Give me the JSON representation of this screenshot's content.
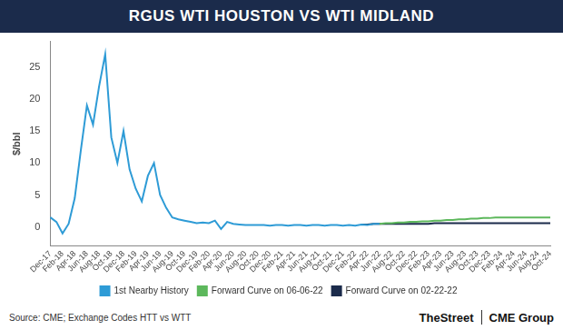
{
  "chart_data": {
    "type": "line",
    "title": "RGUS WTI HOUSTON VS WTI MIDLAND",
    "y_label": "$/bbl",
    "source": "Source: CME; Exchange Codes HTT vs WTT",
    "logos": [
      "TheStreet",
      "CME Group"
    ],
    "categories": [
      "Dec-17",
      null,
      "Feb-18",
      null,
      "Apr-18",
      null,
      "Jun-18",
      null,
      "Aug-18",
      null,
      "Oct-18",
      null,
      "Dec-18",
      null,
      "Feb-19",
      null,
      "Apr-19",
      null,
      "Jun-19",
      null,
      "Aug-19",
      null,
      "Oct-19",
      null,
      "Dec-19",
      null,
      "Feb-20",
      null,
      "Apr-20",
      null,
      "Jun-20",
      null,
      "Aug-20",
      null,
      "Oct-20",
      null,
      "Dec-20",
      null,
      "Feb-21",
      null,
      "Apr-21",
      null,
      "Jun-21",
      null,
      "Aug-21",
      null,
      "Oct-21",
      null,
      "Dec-21",
      null,
      "Feb-22",
      null,
      "Apr-22",
      null,
      "Jun-22",
      null,
      "Aug-22",
      null,
      "Oct-22",
      null,
      "Dec-22",
      null,
      "Feb-23",
      null,
      "Apr-23",
      null,
      "Jun-23",
      null,
      "Aug-23",
      null,
      "Oct-23",
      null,
      "Dec-23",
      null,
      "Feb-24",
      null,
      "Apr-24",
      null,
      "Jun-24",
      null,
      "Aug-24",
      null,
      "Oct-24"
    ],
    "series": [
      {
        "name": "1st Nearby History",
        "color": "#2e9bd6",
        "values": [
          1.5,
          0.8,
          -1.0,
          0.5,
          4.5,
          12,
          19,
          16,
          22,
          27,
          14,
          10,
          15,
          9,
          6,
          4,
          8,
          10,
          5,
          3,
          1.5,
          1.2,
          1.0,
          0.8,
          0.6,
          0.7,
          0.6,
          1.0,
          -0.3,
          0.8,
          0.5,
          0.4,
          0.3,
          0.3,
          0.3,
          0.3,
          0.2,
          0.3,
          0.3,
          0.2,
          0.3,
          0.3,
          0.2,
          0.3,
          0.3,
          0.2,
          0.3,
          0.3,
          0.2,
          0.3,
          0.2,
          0.4,
          0.3,
          0.5,
          0.5,
          null,
          null,
          null,
          null,
          null,
          null,
          null,
          null,
          null,
          null,
          null,
          null,
          null,
          null,
          null,
          null,
          null,
          null,
          null,
          null,
          null,
          null,
          null,
          null,
          null,
          null,
          null,
          null
        ]
      },
      {
        "name": "Forward Curve on 06-06-22",
        "color": "#5db85c",
        "values": [
          null,
          null,
          null,
          null,
          null,
          null,
          null,
          null,
          null,
          null,
          null,
          null,
          null,
          null,
          null,
          null,
          null,
          null,
          null,
          null,
          null,
          null,
          null,
          null,
          null,
          null,
          null,
          null,
          null,
          null,
          null,
          null,
          null,
          null,
          null,
          null,
          null,
          null,
          null,
          null,
          null,
          null,
          null,
          null,
          null,
          null,
          null,
          null,
          null,
          null,
          null,
          null,
          null,
          null,
          0.5,
          0.6,
          0.6,
          0.7,
          0.7,
          0.8,
          0.8,
          0.9,
          0.9,
          1.0,
          1.0,
          1.1,
          1.1,
          1.2,
          1.2,
          1.3,
          1.3,
          1.4,
          1.4,
          1.5,
          1.5,
          1.5,
          1.5,
          1.5,
          1.5,
          1.5,
          1.5,
          1.5,
          1.5
        ]
      },
      {
        "name": "Forward Curve on 02-22-22",
        "color": "#1b2b4b",
        "values": [
          null,
          null,
          null,
          null,
          null,
          null,
          null,
          null,
          null,
          null,
          null,
          null,
          null,
          null,
          null,
          null,
          null,
          null,
          null,
          null,
          null,
          null,
          null,
          null,
          null,
          null,
          null,
          null,
          null,
          null,
          null,
          null,
          null,
          null,
          null,
          null,
          null,
          null,
          null,
          null,
          null,
          null,
          null,
          null,
          null,
          null,
          null,
          null,
          null,
          null,
          null,
          0.4,
          0.4,
          0.5,
          0.5,
          0.5,
          0.5,
          0.5,
          0.5,
          0.5,
          0.5,
          0.5,
          0.5,
          0.6,
          0.6,
          0.6,
          0.6,
          0.6,
          0.6,
          0.6,
          0.6,
          0.6,
          0.6,
          0.6,
          0.6,
          0.6,
          0.6,
          0.6,
          0.6,
          0.6,
          0.6,
          0.6,
          0.6
        ]
      }
    ],
    "ylim": [
      -3,
      29
    ],
    "yticks": [
      0,
      5,
      10,
      15,
      20,
      25
    ],
    "grid": false,
    "legend": "bottom"
  }
}
